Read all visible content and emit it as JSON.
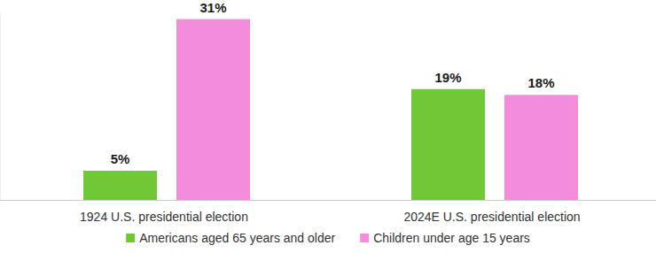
{
  "chart_data": {
    "type": "bar",
    "categories": [
      "1924 U.S. presidential election",
      "2024E U.S. presidential election"
    ],
    "series": [
      {
        "name": "Americans aged 65 years and older",
        "color": "#71c837",
        "values": [
          5,
          19
        ],
        "value_labels": [
          "5%",
          "19%"
        ]
      },
      {
        "name": "Children under age 15 years",
        "color": "#f48cdc",
        "values": [
          31,
          18
        ],
        "value_labels": [
          "31%",
          "18%"
        ]
      }
    ],
    "ylim": [
      0,
      32
    ],
    "grid": false,
    "legend": "bottom",
    "data_labels": true,
    "tick_labels": "x"
  }
}
